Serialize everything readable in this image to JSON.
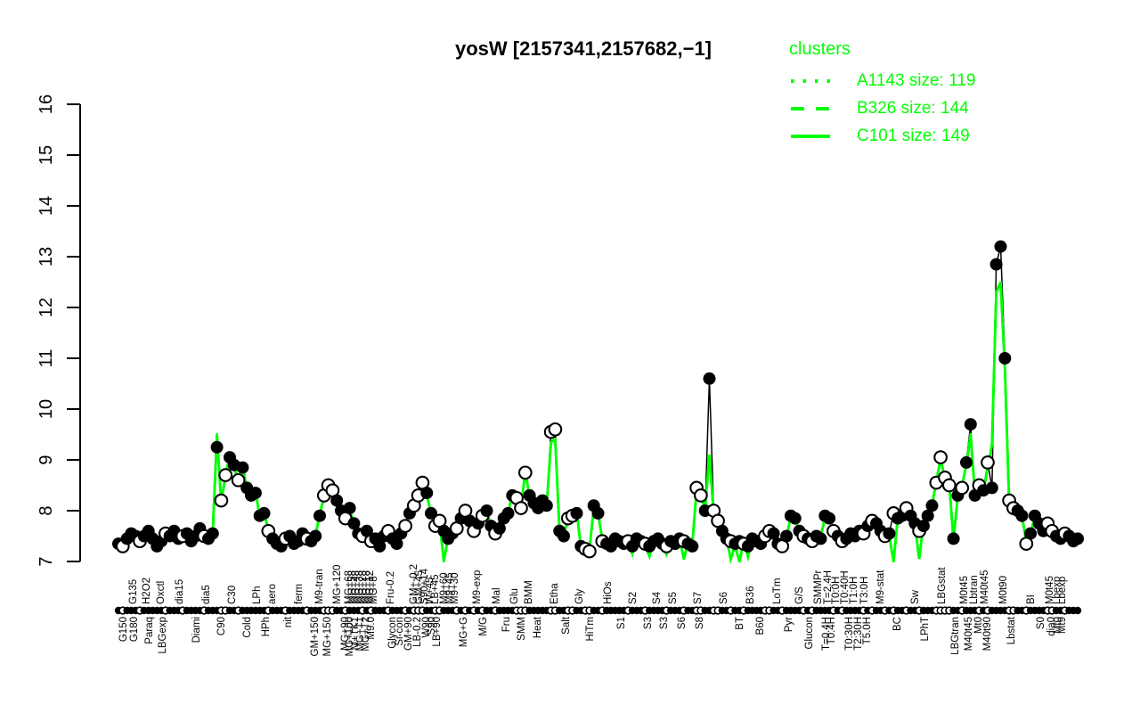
{
  "title": "yosW [2157341,2157682,−1]",
  "colors": {
    "accent_green": "#00FF00",
    "line_black": "#000000",
    "background": "#FFFFFF"
  },
  "legend": {
    "title": "clusters",
    "entries": [
      {
        "style": "dotted",
        "label": "A1143 size: 119"
      },
      {
        "style": "dashed",
        "label": "B326 size: 144"
      },
      {
        "style": "solid",
        "label": "C101 size: 149"
      }
    ]
  },
  "y_axis": {
    "min": 7,
    "max": 16,
    "ticks": [
      7,
      8,
      9,
      10,
      11,
      12,
      13,
      14,
      15,
      16
    ]
  },
  "chart_data": {
    "type": "line",
    "title": "yosW [2157341,2157682,−1]",
    "ylim": [
      7,
      16
    ],
    "grid": false,
    "legend_position": "top-right",
    "series": [
      {
        "name": "yosW expression profile",
        "color": "#000000",
        "marker_filled": "black circle",
        "marker_open": "white circle",
        "values": [
          7.35,
          7.3,
          7.45,
          7.55,
          7.5,
          7.4,
          7.5,
          7.6,
          7.45,
          7.3,
          7.4,
          7.55,
          7.5,
          7.6,
          7.45,
          7.5,
          7.55,
          7.4,
          7.5,
          7.65,
          7.5,
          7.45,
          7.55,
          9.25,
          8.2,
          8.7,
          9.05,
          8.9,
          8.6,
          8.85,
          8.45,
          8.3,
          8.35,
          7.9,
          7.95,
          7.6,
          7.45,
          7.35,
          7.3,
          7.45,
          7.5,
          7.35,
          7.4,
          7.55,
          7.45,
          7.4,
          7.5,
          7.9,
          8.3,
          8.5,
          8.4,
          8.2,
          8.0,
          7.85,
          8.05,
          7.75,
          7.55,
          7.5,
          7.6,
          7.4,
          7.45,
          7.3,
          7.5,
          7.6,
          7.45,
          7.35,
          7.55,
          7.7,
          7.95,
          8.1,
          8.3,
          8.55,
          8.35,
          7.95,
          7.7,
          7.8,
          7.6,
          7.45,
          7.55,
          7.65,
          7.85,
          8.0,
          7.8,
          7.6,
          7.75,
          7.9,
          8.0,
          7.7,
          7.55,
          7.65,
          7.85,
          7.95,
          8.3,
          8.25,
          8.05,
          8.75,
          8.3,
          8.15,
          8.05,
          8.2,
          8.1,
          9.55,
          9.6,
          7.6,
          7.5,
          7.85,
          7.9,
          7.95,
          7.3,
          7.25,
          7.2,
          8.1,
          7.95,
          7.4,
          7.35,
          7.3,
          7.45,
          7.4,
          7.35,
          7.4,
          7.3,
          7.45,
          7.4,
          7.35,
          7.3,
          7.4,
          7.45,
          7.35,
          7.3,
          7.4,
          7.35,
          7.45,
          7.4,
          7.35,
          7.3,
          8.45,
          8.3,
          8.0,
          10.6,
          8.0,
          7.8,
          7.6,
          7.45,
          7.4,
          7.35,
          7.4,
          7.35,
          7.3,
          7.45,
          7.4,
          7.35,
          7.5,
          7.6,
          7.55,
          7.35,
          7.3,
          7.5,
          7.9,
          7.85,
          7.6,
          7.5,
          7.45,
          7.4,
          7.5,
          7.45,
          7.9,
          7.85,
          7.6,
          7.5,
          7.4,
          7.45,
          7.55,
          7.5,
          7.6,
          7.55,
          7.7,
          7.8,
          7.75,
          7.6,
          7.5,
          7.55,
          7.95,
          7.85,
          7.9,
          8.05,
          7.9,
          7.75,
          7.6,
          7.7,
          7.9,
          8.1,
          8.55,
          9.05,
          8.65,
          8.5,
          7.45,
          8.3,
          8.45,
          8.95,
          9.7,
          8.3,
          8.5,
          8.4,
          8.95,
          8.45,
          12.85,
          13.2,
          11.0,
          8.2,
          8.05,
          8.0,
          7.9,
          7.35,
          7.55,
          7.9,
          7.75,
          7.6,
          7.75,
          7.6,
          7.5,
          7.45,
          7.55,
          7.5,
          7.4,
          7.45
        ],
        "marker_open_indices": [
          1,
          5,
          11,
          15,
          20,
          24,
          25,
          28,
          35,
          39,
          44,
          48,
          49,
          50,
          53,
          57,
          59,
          63,
          67,
          69,
          70,
          71,
          74,
          75,
          79,
          81,
          83,
          85,
          88,
          93,
          94,
          95,
          101,
          102,
          105,
          106,
          109,
          110,
          113,
          119,
          123,
          128,
          132,
          135,
          136,
          139,
          140,
          143,
          146,
          151,
          152,
          155,
          160,
          162,
          167,
          169,
          174,
          176,
          179,
          181,
          184,
          187,
          191,
          192,
          193,
          194,
          197,
          201,
          203,
          208,
          209,
          212,
          217,
          218,
          221
        ]
      },
      {
        "name": "cluster mean (A1143 dotted / B326 dashed / C101 solid)",
        "color": "#00FF00",
        "note": "follows gene profile closely; deviates at peaks/dips per overrides",
        "overrides": {
          "23": 9.5,
          "76": 7.0,
          "101": 9.35,
          "102": 9.4,
          "120": 7.15,
          "124": 7.1,
          "128": 7.15,
          "132": 7.05,
          "138": 9.1,
          "139": 7.95,
          "140": 7.7,
          "143": 7.05,
          "145": 7.0,
          "147": 7.1,
          "181": 7.0,
          "187": 7.05,
          "199": 9.5,
          "203": 8.85,
          "204": 9.3,
          "205": 12.3,
          "206": 12.5,
          "207": 10.8,
          "208": 8.15
        }
      }
    ],
    "x_labels_top": [
      [
        "G135",
        149
      ],
      [
        "H2O2",
        164
      ],
      [
        "Oxctl",
        180
      ],
      [
        "dia15",
        201
      ],
      [
        "dia5",
        231
      ],
      [
        "C30",
        260
      ],
      [
        "LPh",
        288
      ],
      [
        "aero",
        305
      ],
      [
        "ferm",
        335
      ],
      [
        "M9-tran",
        358
      ],
      [
        "MG+120",
        378
      ],
      [
        "MG+68",
        391
      ],
      [
        "MG+58",
        395
      ],
      [
        "MG+48",
        399
      ],
      [
        "MG+38",
        403
      ],
      [
        "MG+28",
        407
      ],
      [
        "MG+18",
        411
      ],
      [
        "MG+12",
        415
      ],
      [
        "MG+8",
        419
      ],
      [
        "Fru-0.2",
        438
      ],
      [
        "GM+-0.2",
        464
      ],
      [
        "GM+45",
        470
      ],
      [
        "S90+14",
        476
      ],
      [
        "W+45",
        482
      ],
      [
        "LB+45",
        488
      ],
      [
        "M9+60",
        498
      ],
      [
        "M9+45",
        504
      ],
      [
        "M9+30",
        510
      ],
      [
        "M9-exp",
        535
      ],
      [
        "Mal",
        557
      ],
      [
        "Glu",
        577
      ],
      [
        "BMM",
        593
      ],
      [
        "Etha",
        622
      ],
      [
        "Gly",
        650
      ],
      [
        "HiOs",
        682
      ],
      [
        "S2",
        710
      ],
      [
        "S4",
        737
      ],
      [
        "S5",
        755
      ],
      [
        "S7",
        783
      ],
      [
        "S6",
        812
      ],
      [
        "B36",
        842
      ],
      [
        "LoTm",
        872
      ],
      [
        "G/S",
        897
      ],
      [
        "SMMPr",
        918
      ],
      [
        "T=2.4H",
        929
      ],
      [
        "T0:0H",
        938
      ],
      [
        "T0:40H",
        948
      ],
      [
        "T1:0H",
        958
      ],
      [
        "T3:0H",
        970
      ],
      [
        "M9-stat",
        988
      ],
      [
        "Sw",
        1027
      ],
      [
        "LBGstat",
        1057
      ],
      [
        "M0t45",
        1082
      ],
      [
        "Lbtran",
        1093
      ],
      [
        "M40t45",
        1105
      ],
      [
        "M0t90",
        1126
      ],
      [
        "BI",
        1157
      ],
      [
        "M0t45",
        1178
      ],
      [
        "Lbexp",
        1186
      ],
      [
        "Lbexp",
        1192
      ]
    ],
    "x_labels_bottom": [
      [
        "G150",
        138
      ],
      [
        "G180",
        150
      ],
      [
        "Paraq",
        167
      ],
      [
        "LBGexp",
        182
      ],
      [
        "Diami",
        220
      ],
      [
        "C90",
        248
      ],
      [
        "Cold",
        277
      ],
      [
        "HPh",
        298
      ],
      [
        "nit",
        323
      ],
      [
        "GM+150",
        353
      ],
      [
        "MG+150",
        367
      ],
      [
        "MG+90",
        387
      ],
      [
        "MG+100",
        392
      ],
      [
        "M+TK1",
        398
      ],
      [
        "MG+T1",
        404
      ],
      [
        "MG+T2",
        410
      ],
      [
        "M9.0",
        416
      ],
      [
        "Glycon",
        440
      ],
      [
        "Si-con",
        448
      ],
      [
        "GM+90",
        458
      ],
      [
        "LB-0.2",
        468
      ],
      [
        "W90",
        478
      ],
      [
        "S90",
        484
      ],
      [
        "LB+90",
        490
      ],
      [
        "MG+G",
        520
      ],
      [
        "M/G",
        542
      ],
      [
        "Fru",
        568
      ],
      [
        "SMM",
        585
      ],
      [
        "Heat",
        603
      ],
      [
        "Salt",
        635
      ],
      [
        "HiTm",
        662
      ],
      [
        "S1",
        697
      ],
      [
        "S3",
        727
      ],
      [
        "S3",
        745
      ],
      [
        "S6",
        765
      ],
      [
        "S8",
        785
      ],
      [
        "BT",
        830
      ],
      [
        "B60",
        853
      ],
      [
        "Pyr",
        885
      ],
      [
        "Glucon",
        908
      ],
      [
        "T=0.4H",
        927
      ],
      [
        "T0.4H",
        933
      ],
      [
        "T0:30H",
        953
      ],
      [
        "T2:30H",
        963
      ],
      [
        "T5.0H",
        973
      ],
      [
        "BC",
        1007
      ],
      [
        "LPhT",
        1038
      ],
      [
        "LBGtran",
        1072
      ],
      [
        "M40t45",
        1087
      ],
      [
        "Mt0",
        1098
      ],
      [
        "M40t90",
        1108
      ],
      [
        "Lbstat",
        1135
      ],
      [
        "S0",
        1168
      ],
      [
        "dia0",
        1180
      ],
      [
        "Mt0",
        1187
      ],
      [
        "Mt9",
        1192
      ]
    ]
  }
}
